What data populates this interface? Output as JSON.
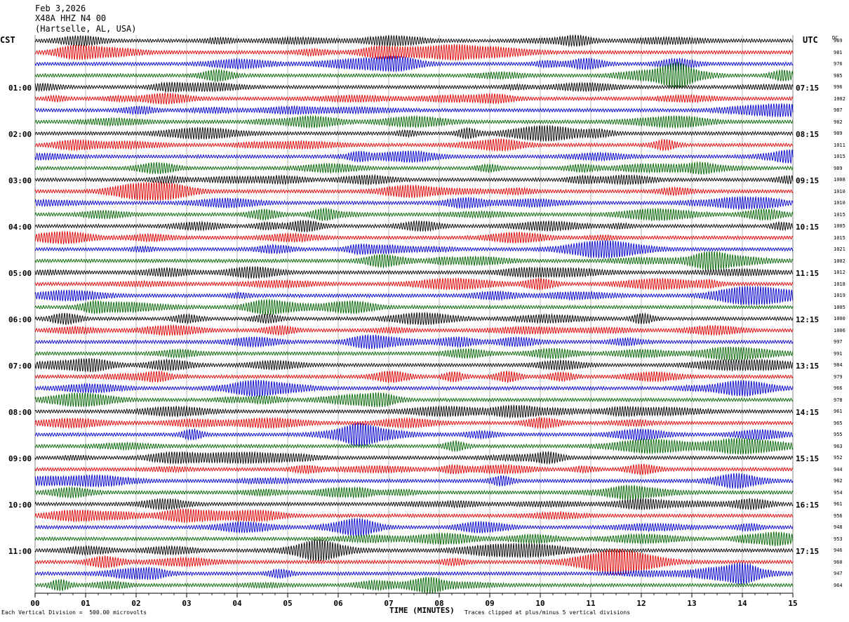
{
  "header": {
    "date": "Feb 3,2026",
    "station": "X48A HHZ N4 00",
    "location": "(Hartselle, AL, USA)"
  },
  "left_tz": "CST",
  "right_tz": "UTC",
  "dc_header": "DC",
  "colors": {
    "traces": [
      "#000000",
      "#dd0000",
      "#0000cc",
      "#006400"
    ],
    "grid": "#888888"
  },
  "chart_data": {
    "type": "line",
    "xlabel": "TIME (MINUTES)",
    "x_ticks": [
      "00",
      "01",
      "02",
      "03",
      "04",
      "05",
      "06",
      "07",
      "08",
      "09",
      "10",
      "11",
      "12",
      "13",
      "14",
      "15"
    ],
    "xlim": [
      0,
      15
    ],
    "left_labels": [
      "01:00",
      "02:00",
      "03:00",
      "04:00",
      "05:00",
      "06:00",
      "07:00",
      "08:00",
      "09:00",
      "10:00",
      "11:00"
    ],
    "right_labels": [
      "07:15",
      "08:15",
      "09:15",
      "10:15",
      "11:15",
      "12:15",
      "13:15",
      "14:15",
      "15:15",
      "16:15",
      "17:15"
    ],
    "traces_per_hour": 4,
    "trace_count": 48,
    "dc_offsets": [
      "969",
      "981",
      "976",
      "985",
      "996",
      "1002",
      "987",
      "982",
      "989",
      "1011",
      "1015",
      "989",
      "1008",
      "1010",
      "1010",
      "1015",
      "1005",
      "1015",
      "1021",
      "1002",
      "1012",
      "1018",
      "1019",
      "1005",
      "1000",
      "1006",
      "997",
      "991",
      "984",
      "979",
      "966",
      "978",
      "961",
      "965",
      "955",
      "963",
      "952",
      "944",
      "962",
      "954",
      "961",
      "956",
      "948",
      "953",
      "946",
      "960",
      "947",
      "964"
    ]
  },
  "footer": {
    "scale_note": "Each Vertical Division =  500.00 microvolts",
    "clip_note": "Traces clipped at plus/minus 5 vertical divisions"
  }
}
